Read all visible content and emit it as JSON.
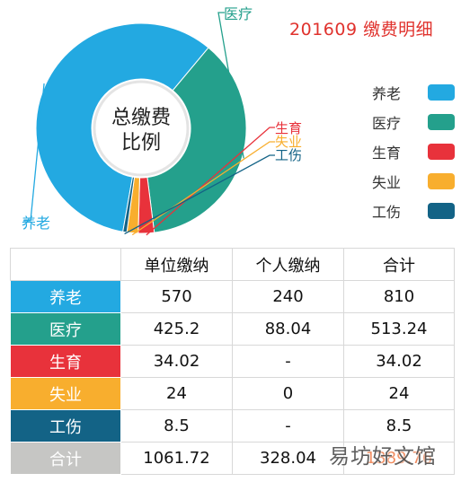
{
  "title": "201609 缴费明细",
  "center_label": {
    "line1": "总缴费",
    "line2": "比例"
  },
  "chart_data": {
    "type": "pie",
    "title": "201609 缴费明细",
    "categories": [
      "养老",
      "医疗",
      "生育",
      "失业",
      "工伤"
    ],
    "values": [
      810,
      513.24,
      34.02,
      24,
      8.5
    ],
    "colors": [
      "#23a9e1",
      "#24a08c",
      "#e8323b",
      "#f8ae2e",
      "#136386"
    ],
    "legend_position": "right"
  },
  "legend": [
    {
      "label": "养老",
      "color": "#23a9e1"
    },
    {
      "label": "医疗",
      "color": "#24a08c"
    },
    {
      "label": "生育",
      "color": "#e8323b"
    },
    {
      "label": "失业",
      "color": "#f8ae2e"
    },
    {
      "label": "工伤",
      "color": "#136386"
    }
  ],
  "table": {
    "headers": [
      "",
      "单位缴纳",
      "个人缴纳",
      "合计"
    ],
    "rows": [
      {
        "label": "养老",
        "color": "#23a9e1",
        "cells": [
          "570",
          "240",
          "810"
        ]
      },
      {
        "label": "医疗",
        "color": "#24a08c",
        "cells": [
          "425.2",
          "88.04",
          "513.24"
        ]
      },
      {
        "label": "生育",
        "color": "#e8323b",
        "cells": [
          "34.02",
          "-",
          "34.02"
        ]
      },
      {
        "label": "失业",
        "color": "#f8ae2e",
        "cells": [
          "24",
          "0",
          "24"
        ]
      },
      {
        "label": "工伤",
        "color": "#136386",
        "cells": [
          "8.5",
          "-",
          "8.5"
        ]
      },
      {
        "label": "合计",
        "color": "#c6c6c4",
        "cells": [
          "1061.72",
          "328.04",
          "1389.76"
        ]
      }
    ]
  },
  "watermark": "易坊好文馆"
}
